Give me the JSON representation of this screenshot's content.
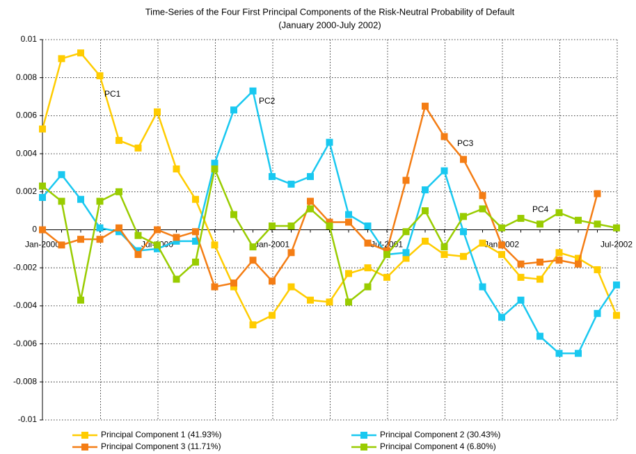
{
  "chart_data": {
    "type": "line",
    "title": "Time-Series of the Four First Principal Components of the Risk-Neutral Probability of Default",
    "subtitle": "(January 2000-July 2002)",
    "categories": [
      "Jan-2000",
      null,
      null,
      null,
      null,
      null,
      "Jul-2000",
      null,
      null,
      null,
      null,
      null,
      "Jan-2001",
      null,
      null,
      null,
      null,
      null,
      "Jul-2001",
      null,
      null,
      null,
      null,
      null,
      "Jan-2002",
      null,
      null,
      null,
      null,
      null,
      "Jul-2002"
    ],
    "ylim": [
      -0.01,
      0.01
    ],
    "yticks": [
      -0.01,
      -0.008,
      -0.006,
      -0.004,
      -0.002,
      0,
      0.002,
      0.004,
      0.006,
      0.008,
      0.01
    ],
    "grid": true,
    "legend": "bottom",
    "annotations": [
      "PC1",
      "PC2",
      "PC3",
      "PC4"
    ],
    "series": [
      {
        "name": "Principal Component 1 (41.93%)",
        "color": "#ffcc00",
        "values": [
          0.0053,
          0.009,
          0.0093,
          0.0081,
          0.0047,
          0.0043,
          0.0062,
          0.0032,
          0.0016,
          -0.0008,
          -0.003,
          -0.005,
          -0.0045,
          -0.003,
          -0.0037,
          -0.0038,
          -0.0023,
          -0.002,
          -0.0025,
          -0.0015,
          -0.0006,
          -0.0013,
          -0.0014,
          -0.0007,
          -0.0013,
          -0.0025,
          -0.0026,
          -0.0012,
          -0.0015,
          -0.0021,
          -0.0045
        ]
      },
      {
        "name": "Principal Component 2 (30.43%)",
        "color": "#19c8f0",
        "values": [
          0.0017,
          0.0029,
          0.0016,
          0.0001,
          -0.0001,
          -0.0011,
          -0.001,
          -0.0006,
          -0.0006,
          0.0035,
          0.0063,
          0.0073,
          0.0028,
          0.0024,
          0.0028,
          0.0046,
          0.0008,
          0.0002,
          -0.0013,
          -0.0012,
          0.0021,
          0.0031,
          -0.0001,
          -0.003,
          -0.0046,
          -0.0037,
          -0.0056,
          -0.0065,
          -0.0065,
          -0.0044,
          -0.0029
        ]
      },
      {
        "name": "Principal Component 3 (11.71%)",
        "color": "#f47d14",
        "values": [
          0,
          -0.0008,
          -0.0005,
          -0.0005,
          0.0001,
          -0.0013,
          0,
          -0.0004,
          -0.0001,
          -0.003,
          -0.0028,
          -0.0016,
          -0.0027,
          -0.0012,
          0.0015,
          0.0004,
          0.0004,
          -0.0007,
          -0.0011,
          0.0026,
          0.0065,
          0.0049,
          0.0037,
          0.0018,
          -0.0008,
          -0.0018,
          -0.0017,
          -0.0016,
          -0.0018,
          0.0019,
          null
        ]
      },
      {
        "name": "Principal Component 4 (6.80%)",
        "color": "#99cc00",
        "values": [
          0.0023,
          0.0015,
          -0.0037,
          0.0015,
          0.002,
          -0.0003,
          -0.0008,
          -0.0026,
          -0.0017,
          0.0032,
          0.0008,
          -0.0009,
          0.0002,
          0.0002,
          0.0011,
          0.0002,
          -0.0038,
          -0.003,
          -0.0013,
          -0.0001,
          0.001,
          -0.0009,
          0.0007,
          0.0011,
          0.0001,
          0.0006,
          0.0003,
          0.0009,
          0.0005,
          0.0003,
          0.0001
        ]
      }
    ]
  }
}
